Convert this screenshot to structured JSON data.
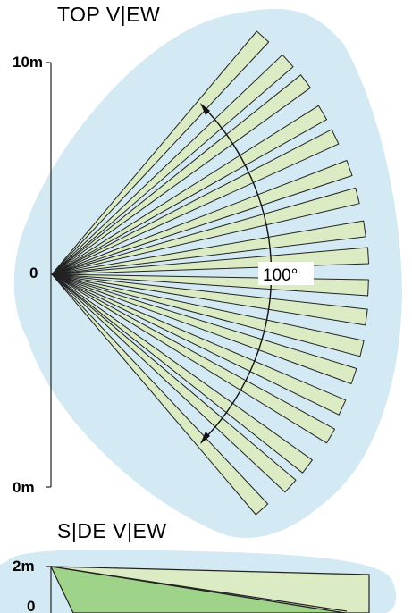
{
  "top_view": {
    "title": "TOP V|EW",
    "label_top": "10m",
    "label_middle": "0",
    "label_bottom": "0m",
    "angle_label": "100°",
    "zone_count": 21,
    "coverage_angle_deg": 100
  },
  "side_view": {
    "title": "S|DE V|EW",
    "label_top": "2m",
    "label_bottom": "0"
  },
  "colors": {
    "coverage_area": "#d3e9f3",
    "zone_fill": "#dbebc3",
    "zone_fill_dark": "#9fd38a",
    "stroke": "#222222"
  }
}
